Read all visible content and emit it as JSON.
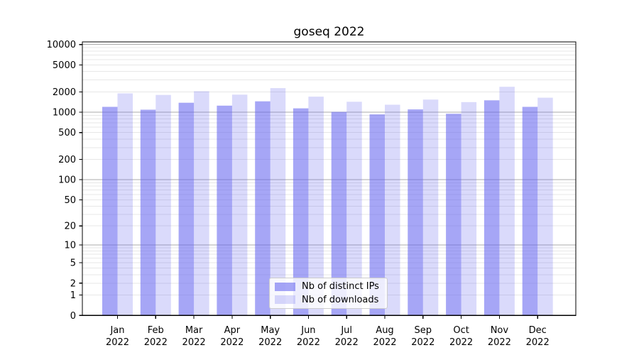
{
  "chart_data": {
    "type": "bar",
    "title": "goseq 2022",
    "x": [
      "Jan",
      "Feb",
      "Mar",
      "Apr",
      "May",
      "Jun",
      "Jul",
      "Aug",
      "Sep",
      "Oct",
      "Nov",
      "Dec"
    ],
    "x_year": "2022",
    "series": [
      {
        "name": "Nb of distinct IPs",
        "color": "#6666f0",
        "fill_opacity": 0.58,
        "values": [
          1200,
          1090,
          1380,
          1250,
          1450,
          1140,
          1010,
          930,
          1100,
          950,
          1500,
          1200
        ]
      },
      {
        "name": "Nb of downloads",
        "color": "#6666f0",
        "fill_opacity": 0.24,
        "values": [
          1900,
          1800,
          2040,
          1820,
          2270,
          1700,
          1430,
          1290,
          1540,
          1410,
          2380,
          1640
        ]
      }
    ],
    "yscale": "log1p",
    "ylim": [
      0,
      10900
    ],
    "yticks": [
      0,
      1,
      2,
      5,
      10,
      20,
      50,
      100,
      200,
      500,
      1000,
      2000,
      5000,
      10000
    ],
    "grid": {
      "major_values": [
        10,
        100,
        1000,
        10000
      ],
      "minor_values": [
        1,
        2,
        3,
        4,
        5,
        6,
        7,
        8,
        9,
        20,
        30,
        40,
        50,
        60,
        70,
        80,
        90,
        200,
        300,
        400,
        500,
        600,
        700,
        800,
        900,
        2000,
        3000,
        4000,
        5000,
        6000,
        7000,
        8000,
        9000
      ],
      "major_color": "#ababab",
      "minor_color": "#e7e7e7",
      "grid_on": true
    },
    "legend_position": "lower center",
    "axis_color": "#000000",
    "text_color": "#000000",
    "background_color": "#ffffff"
  }
}
